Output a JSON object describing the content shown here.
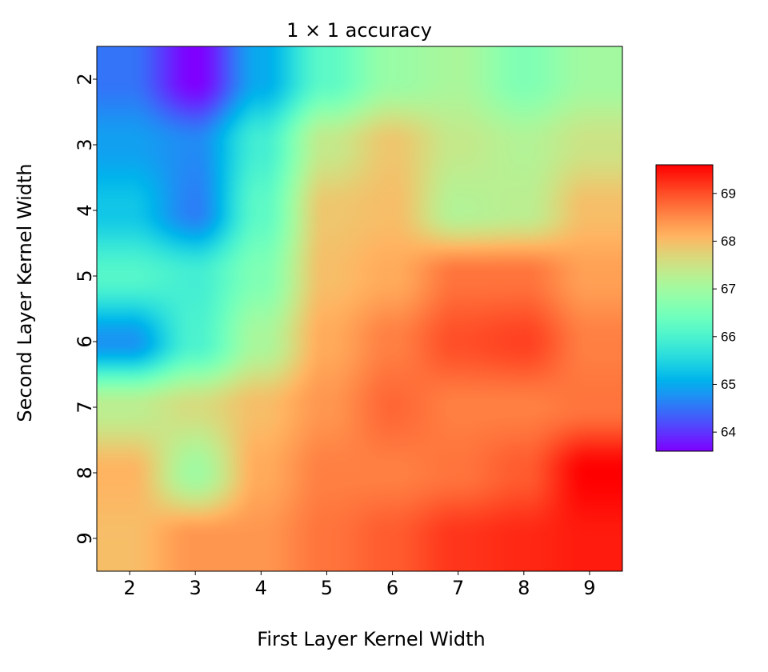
{
  "chart_data": {
    "type": "heatmap",
    "title": "1 × 1 accuracy",
    "xlabel": "First Layer Kernel Width",
    "ylabel": "Second Layer Kernel Width",
    "x_categories": [
      "2",
      "3",
      "4",
      "5",
      "6",
      "7",
      "8",
      "9"
    ],
    "y_categories": [
      "2",
      "3",
      "4",
      "5",
      "6",
      "7",
      "8",
      "9"
    ],
    "colormap": "rainbow",
    "interpolation": "smooth",
    "vmin": 63.6,
    "vmax": 69.6,
    "colorbar_ticks": [
      "64",
      "65",
      "66",
      "67",
      "68",
      "69"
    ],
    "values": [
      [
        64.5,
        63.6,
        65.0,
        66.2,
        66.9,
        67.1,
        66.6,
        67.0
      ],
      [
        64.9,
        64.7,
        65.9,
        67.4,
        67.9,
        67.4,
        67.2,
        67.5
      ],
      [
        65.3,
        64.6,
        66.2,
        67.9,
        68.0,
        67.2,
        67.3,
        68.0
      ],
      [
        66.1,
        65.9,
        66.6,
        68.0,
        68.2,
        68.7,
        68.7,
        68.3
      ],
      [
        64.8,
        66.0,
        67.1,
        68.2,
        68.6,
        69.0,
        69.1,
        68.6
      ],
      [
        67.3,
        67.6,
        68.0,
        68.4,
        68.8,
        68.6,
        68.6,
        68.7
      ],
      [
        68.1,
        67.0,
        68.2,
        68.6,
        68.6,
        68.7,
        68.9,
        69.6
      ],
      [
        68.0,
        68.4,
        68.4,
        68.7,
        68.9,
        69.2,
        69.3,
        69.4
      ]
    ]
  }
}
